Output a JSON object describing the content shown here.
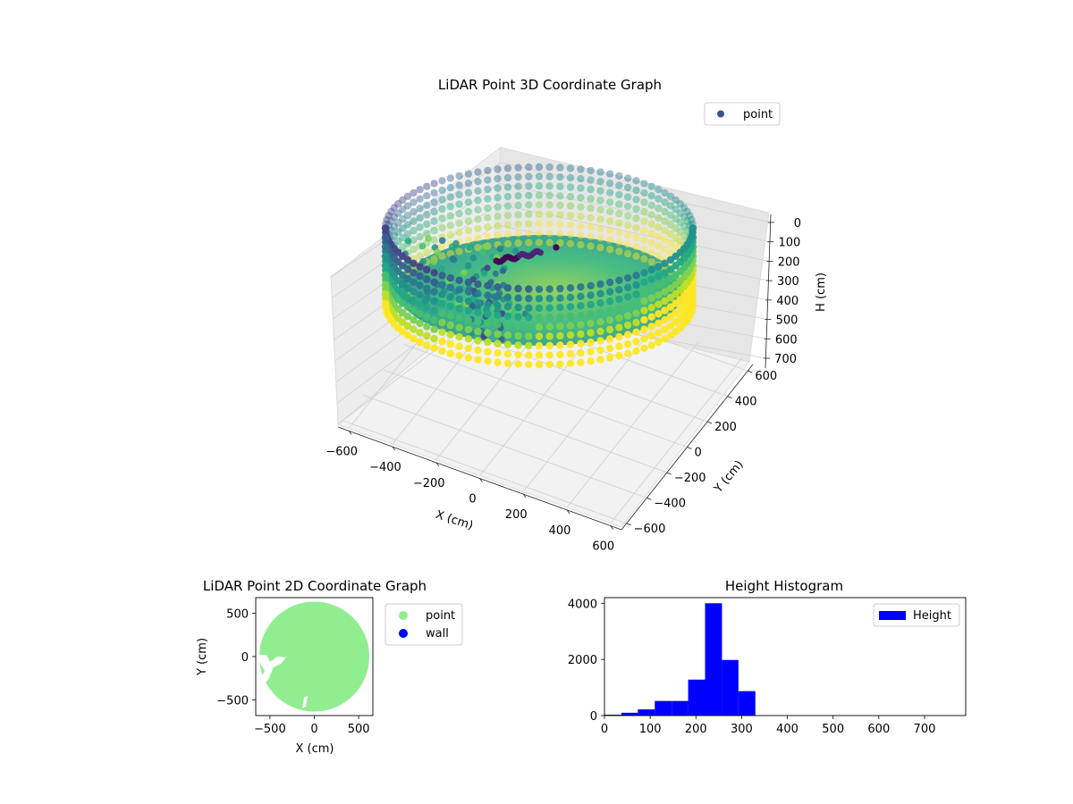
{
  "chart_data": [
    {
      "type": "scatter",
      "subtype": "3d",
      "title": "LiDAR Point 3D Coordinate Graph",
      "xlabel": "X (cm)",
      "ylabel": "Y (cm)",
      "zlabel": "H (cm)",
      "x_ticks": [
        -600,
        -400,
        -200,
        0,
        200,
        400,
        600
      ],
      "y_ticks": [
        -600,
        -400,
        -200,
        0,
        200,
        400,
        600
      ],
      "z_ticks": [
        0,
        100,
        200,
        300,
        400,
        500,
        600,
        700
      ],
      "xlim": [
        -650,
        650
      ],
      "ylim": [
        -650,
        650
      ],
      "zlim": [
        750,
        0
      ],
      "z_inverted": true,
      "colormap": "viridis",
      "grid": true,
      "legend": {
        "position": "top-right",
        "entries": [
          {
            "name": "point",
            "color": "#3b528b"
          }
        ]
      },
      "series": [
        {
          "name": "point",
          "description_points": [
            {
              "x": -620,
              "y": 0,
              "h": 250
            },
            {
              "x": 0,
              "y": 620,
              "h": 250
            },
            {
              "x": 620,
              "y": 0,
              "h": 250
            },
            {
              "x": 0,
              "y": -620,
              "h": 250
            },
            {
              "x": -100,
              "y": 50,
              "h": 50
            }
          ]
        }
      ]
    },
    {
      "type": "scatter",
      "title": "LiDAR Point 2D Coordinate Graph",
      "xlabel": "X (cm)",
      "ylabel": "Y (cm)",
      "x_ticks": [
        -500,
        0,
        500
      ],
      "y_ticks": [
        -500,
        0,
        500
      ],
      "xlim": [
        -660,
        660
      ],
      "ylim": [
        -680,
        680
      ],
      "legend": {
        "position": "outside-right",
        "entries": [
          {
            "name": "point",
            "color": "#90ee90"
          },
          {
            "name": "wall",
            "color": "#0000ff"
          }
        ]
      },
      "series": [
        {
          "name": "point",
          "shape": "disk",
          "center": [
            0,
            0
          ],
          "radius": 620
        },
        {
          "name": "wall",
          "values": []
        }
      ]
    },
    {
      "type": "bar",
      "subtype": "histogram",
      "title": "Height Histogram",
      "xlabel": "",
      "ylabel": "",
      "x_ticks": [
        0,
        100,
        200,
        300,
        400,
        500,
        600,
        700
      ],
      "y_ticks": [
        0,
        2000,
        4000
      ],
      "xlim": [
        0,
        790
      ],
      "ylim": [
        0,
        4200
      ],
      "legend": {
        "position": "top-right",
        "entries": [
          {
            "name": "Height",
            "color": "#0000ff"
          }
        ]
      },
      "series": [
        {
          "name": "Height",
          "bins": [
            {
              "x0": 0,
              "x1": 37,
              "value": 30
            },
            {
              "x0": 37,
              "x1": 73,
              "value": 100
            },
            {
              "x0": 73,
              "x1": 110,
              "value": 220
            },
            {
              "x0": 110,
              "x1": 147,
              "value": 520
            },
            {
              "x0": 147,
              "x1": 183,
              "value": 520
            },
            {
              "x0": 183,
              "x1": 220,
              "value": 1280
            },
            {
              "x0": 220,
              "x1": 257,
              "value": 4000
            },
            {
              "x0": 257,
              "x1": 293,
              "value": 1980
            },
            {
              "x0": 293,
              "x1": 330,
              "value": 870
            },
            {
              "x0": 330,
              "x1": 790,
              "value": 0
            }
          ]
        }
      ]
    }
  ]
}
